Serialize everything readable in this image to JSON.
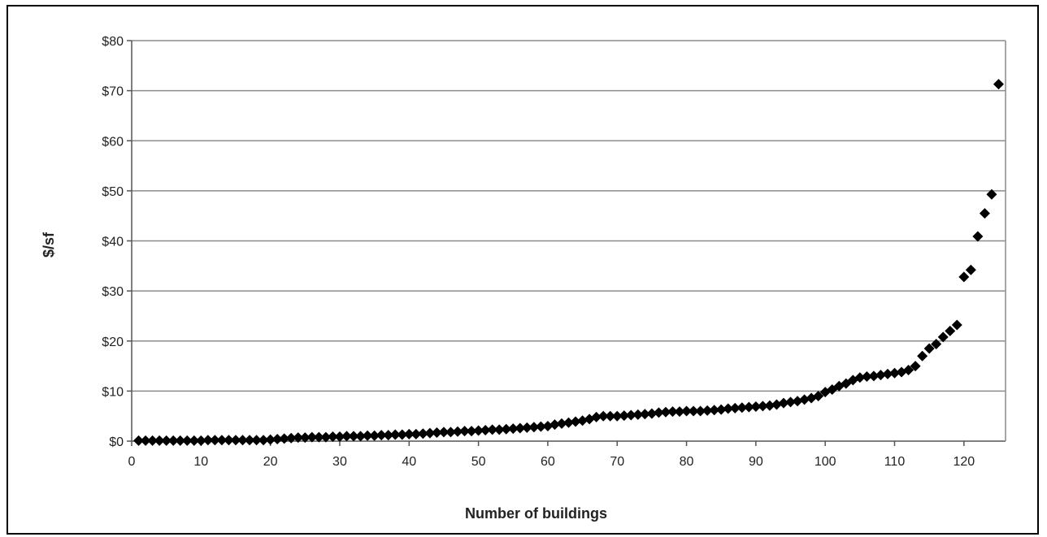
{
  "colors": {
    "marker": "#000000",
    "grid": "#8c8c8c",
    "axis": "#555555",
    "background": "#ffffff"
  },
  "chart_data": {
    "type": "scatter",
    "title": "",
    "xlabel": "Number of buildings",
    "ylabel": "$/sf",
    "xlim": [
      0,
      126
    ],
    "ylim": [
      0,
      80
    ],
    "x_ticks": [
      0,
      10,
      20,
      30,
      40,
      50,
      60,
      70,
      80,
      90,
      100,
      110,
      120
    ],
    "y_ticks": [
      0,
      10,
      20,
      30,
      40,
      50,
      60,
      70,
      80
    ],
    "x_tick_labels": [
      "0",
      "10",
      "20",
      "30",
      "40",
      "50",
      "60",
      "70",
      "80",
      "90",
      "100",
      "110",
      "120"
    ],
    "y_tick_labels": [
      "$0",
      "$10",
      "$20",
      "$30",
      "$40",
      "$50",
      "$60",
      "$70",
      "$80"
    ],
    "grid": "horizontal",
    "legend": "none",
    "marker": "diamond",
    "series": [
      {
        "x": [
          1,
          2,
          3,
          4,
          5,
          6,
          7,
          8,
          9,
          10,
          11,
          12,
          13,
          14,
          15,
          16,
          17,
          18,
          19,
          20,
          21,
          22,
          23,
          24,
          25,
          26,
          27,
          28,
          29,
          30,
          31,
          32,
          33,
          34,
          35,
          36,
          37,
          38,
          39,
          40,
          41,
          42,
          43,
          44,
          45,
          46,
          47,
          48,
          49,
          50,
          51,
          52,
          53,
          54,
          55,
          56,
          57,
          58,
          59,
          60,
          61,
          62,
          63,
          64,
          65,
          66,
          67,
          68,
          69,
          70,
          71,
          72,
          73,
          74,
          75,
          76,
          77,
          78,
          79,
          80,
          81,
          82,
          83,
          84,
          85,
          86,
          87,
          88,
          89,
          90,
          91,
          92,
          93,
          94,
          95,
          96,
          97,
          98,
          99,
          100,
          101,
          102,
          103,
          104,
          105,
          106,
          107,
          108,
          109,
          110,
          111,
          112,
          113,
          114,
          115,
          116,
          117,
          118,
          119,
          120,
          121,
          122,
          123,
          124,
          125
        ],
        "y": [
          0.1,
          0.1,
          0.1,
          0.1,
          0.1,
          0.1,
          0.1,
          0.1,
          0.1,
          0.1,
          0.2,
          0.2,
          0.2,
          0.2,
          0.2,
          0.2,
          0.2,
          0.2,
          0.2,
          0.3,
          0.4,
          0.5,
          0.6,
          0.7,
          0.7,
          0.8,
          0.8,
          0.8,
          0.9,
          0.9,
          1.0,
          1.0,
          1.0,
          1.1,
          1.1,
          1.2,
          1.2,
          1.3,
          1.3,
          1.4,
          1.4,
          1.5,
          1.6,
          1.7,
          1.8,
          1.8,
          1.9,
          2.0,
          2.0,
          2.1,
          2.2,
          2.3,
          2.3,
          2.4,
          2.5,
          2.6,
          2.7,
          2.8,
          2.9,
          3.0,
          3.3,
          3.5,
          3.7,
          3.9,
          4.1,
          4.4,
          4.8,
          5.0,
          5.0,
          5.0,
          5.1,
          5.2,
          5.3,
          5.4,
          5.5,
          5.7,
          5.8,
          5.9,
          5.9,
          6.0,
          6.0,
          6.0,
          6.1,
          6.2,
          6.3,
          6.5,
          6.6,
          6.7,
          6.8,
          6.9,
          7.0,
          7.1,
          7.3,
          7.6,
          7.8,
          8.0,
          8.3,
          8.6,
          9.0,
          9.8,
          10.3,
          11.0,
          11.5,
          12.2,
          12.7,
          12.9,
          13.0,
          13.2,
          13.4,
          13.6,
          13.8,
          14.2,
          15.0,
          17.0,
          18.5,
          19.4,
          20.8,
          22.0,
          23.2,
          32.8,
          34.2,
          40.9,
          45.5,
          49.3,
          71.3
        ]
      }
    ]
  }
}
